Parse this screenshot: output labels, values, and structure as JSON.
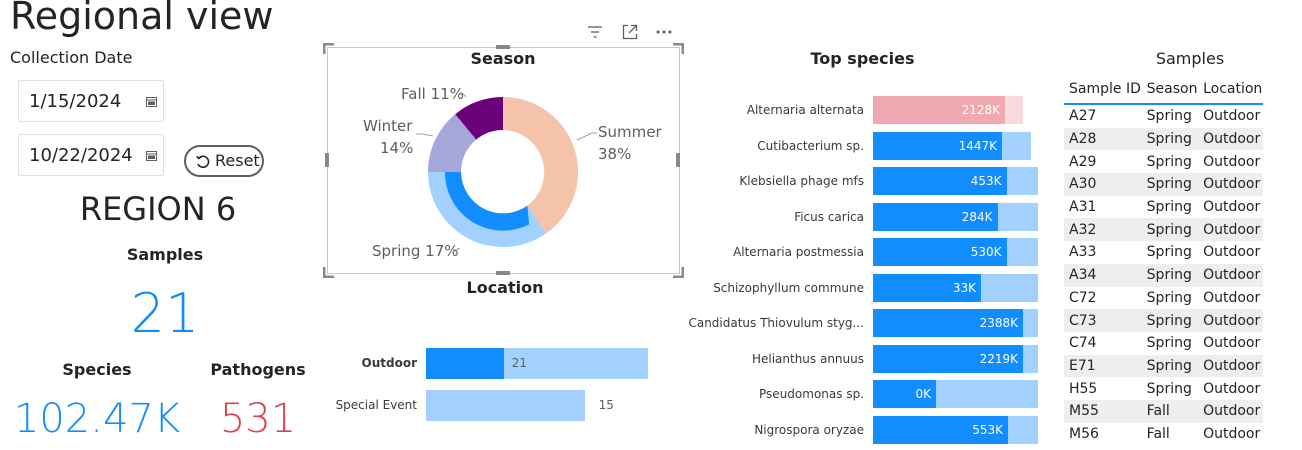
{
  "page_title": "Regional view",
  "filters": {
    "date_label": "Collection Date",
    "start_date": "1/15/2024",
    "end_date": "10/22/2024",
    "reset_label": "Reset"
  },
  "region": {
    "title": "REGION 6"
  },
  "kpis": {
    "samples_label": "Samples",
    "samples_value": "21",
    "species_label": "Species",
    "species_value": "102.47K",
    "pathogens_label": "Pathogens",
    "pathogens_value": "531"
  },
  "season_chart": {
    "title": "Season",
    "type": "donut",
    "slices": [
      {
        "name": "Summer",
        "pct": 38,
        "label_line1": "Summer",
        "label_line2": "38%",
        "color": "#f4c3a9"
      },
      {
        "name": "Spring",
        "pct": 17,
        "label_line1": "Spring 17%",
        "color": "#a3d1ff"
      },
      {
        "name": "Winter",
        "pct": 14,
        "label_line1": "Winter",
        "label_line2": "14%",
        "color": "#a4a8da"
      },
      {
        "name": "Fall",
        "pct": 11,
        "label_line1": "Fall 11%",
        "color": "#6b007b"
      }
    ],
    "inner_highlight": {
      "name": "Spring",
      "color": "#118dff"
    }
  },
  "location_chart": {
    "title": "Location",
    "type": "bar",
    "categories": [
      "Outdoor",
      "Special Event"
    ],
    "values": [
      21,
      15
    ],
    "highlight_values": [
      21,
      0
    ],
    "value_labels": [
      "21",
      "15"
    ],
    "xlim": [
      0,
      21
    ]
  },
  "species_chart": {
    "title": "Top species",
    "type": "bar",
    "categories": [
      "Alternaria alternata",
      "Cutibacterium sp.",
      "Klebsiella phage mfs",
      "Ficus carica",
      "Alternaria postmessia",
      "Schizophyllum commune",
      "Candidatus Thiovulum styg...",
      "Helianthus annuus",
      "Pseudomonas sp.",
      "Nigrospora oryzae"
    ],
    "values": [
      0.91,
      0.96,
      1.0,
      1.0,
      1.0,
      1.0,
      1.0,
      1.0,
      1.0,
      1.0
    ],
    "highlight_values": [
      0.88,
      0.86,
      0.89,
      0.83,
      0.89,
      0.72,
      1.0,
      1.0,
      0.42,
      0.9
    ],
    "value_labels": [
      "2128K",
      "1447K",
      "453K",
      "284K",
      "530K",
      "33K",
      "2388K",
      "2219K",
      "0K",
      "553K"
    ],
    "first_row_color": "#f0a9b1",
    "first_row_back": "#f8d9dd"
  },
  "samples_table": {
    "title": "Samples",
    "columns": [
      "Sample ID",
      "Season",
      "Location"
    ],
    "rows": [
      [
        "A27",
        "Spring",
        "Outdoor"
      ],
      [
        "A28",
        "Spring",
        "Outdoor"
      ],
      [
        "A29",
        "Spring",
        "Outdoor"
      ],
      [
        "A30",
        "Spring",
        "Outdoor"
      ],
      [
        "A31",
        "Spring",
        "Outdoor"
      ],
      [
        "A32",
        "Spring",
        "Outdoor"
      ],
      [
        "A33",
        "Spring",
        "Outdoor"
      ],
      [
        "A34",
        "Spring",
        "Outdoor"
      ],
      [
        "C72",
        "Spring",
        "Outdoor"
      ],
      [
        "C73",
        "Spring",
        "Outdoor"
      ],
      [
        "C74",
        "Spring",
        "Outdoor"
      ],
      [
        "E71",
        "Spring",
        "Outdoor"
      ],
      [
        "H55",
        "Spring",
        "Outdoor"
      ],
      [
        "M55",
        "Fall",
        "Outdoor"
      ],
      [
        "M56",
        "Fall",
        "Outdoor"
      ]
    ]
  },
  "colors": {
    "accent": "#118dff",
    "accent_light": "#a3d1ff",
    "pathogen": "#d64550"
  },
  "icons": {
    "filter": "filter-icon",
    "focus": "focus-mode-icon",
    "more": "more-options-icon",
    "calendar": "calendar-icon",
    "reset": "reset-arrow-icon"
  }
}
